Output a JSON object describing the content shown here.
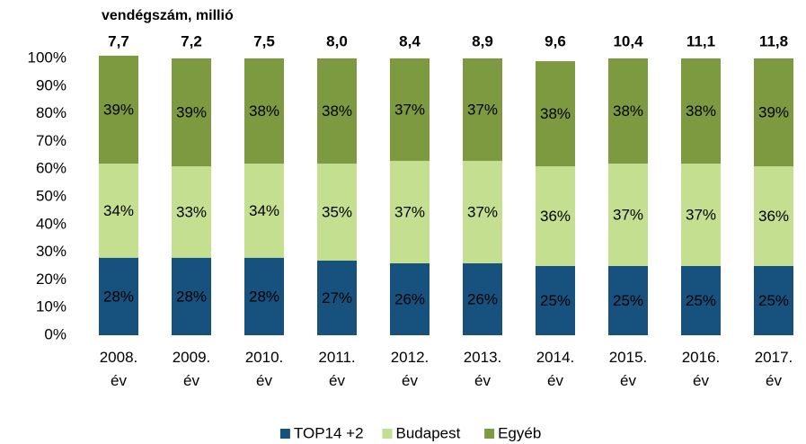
{
  "chart_data": {
    "type": "stacked_bar",
    "subtitle": "vendégszám, millió",
    "categories": [
      "2008. év",
      "2009. év",
      "2010. év",
      "2011. év",
      "2012. év",
      "2013. év",
      "2014. év",
      "2015. év",
      "2016. év",
      "2017. év"
    ],
    "series": [
      {
        "name": "TOP14 +2",
        "color": "#17517e",
        "label_color": "#c3df8f",
        "values": [
          28,
          28,
          28,
          27,
          26,
          26,
          25,
          25,
          25,
          25
        ],
        "value_labels": [
          "28%",
          "28%",
          "28%",
          "27%",
          "26%",
          "26%",
          "25%",
          "25%",
          "25%",
          "25%"
        ]
      },
      {
        "name": "Budapest",
        "color": "#c3df8f",
        "label_color": "#17406e",
        "values": [
          34,
          33,
          34,
          35,
          37,
          37,
          36,
          37,
          37,
          36
        ],
        "value_labels": [
          "34%",
          "33%",
          "34%",
          "35%",
          "37%",
          "37%",
          "36%",
          "37%",
          "37%",
          "36%"
        ]
      },
      {
        "name": "Egyéb",
        "color": "#7e9a40",
        "label_color": "#17406e",
        "values": [
          39,
          39,
          38,
          38,
          37,
          37,
          38,
          38,
          38,
          39
        ],
        "value_labels": [
          "39%",
          "39%",
          "38%",
          "38%",
          "37%",
          "37%",
          "38%",
          "38%",
          "38%",
          "39%"
        ]
      }
    ],
    "totals": {
      "values": [
        7.7,
        7.2,
        7.5,
        8.0,
        8.4,
        8.9,
        9.6,
        10.4,
        11.1,
        11.8
      ],
      "value_labels": [
        "7,7",
        "7,2",
        "7,5",
        "8,0",
        "8,4",
        "8,9",
        "9,6",
        "10,4",
        "11,1",
        "11,8"
      ]
    },
    "ylim": [
      0,
      100
    ],
    "yticks": [
      {
        "value": 0,
        "label": "0%"
      },
      {
        "value": 10,
        "label": "10%"
      },
      {
        "value": 20,
        "label": "20%"
      },
      {
        "value": 30,
        "label": "30%"
      },
      {
        "value": 40,
        "label": "40%"
      },
      {
        "value": 50,
        "label": "50%"
      },
      {
        "value": 60,
        "label": "60%"
      },
      {
        "value": 70,
        "label": "70%"
      },
      {
        "value": 80,
        "label": "80%"
      },
      {
        "value": 90,
        "label": "90%"
      },
      {
        "value": 100,
        "label": "100%"
      }
    ],
    "grid": false,
    "legend": "bottom"
  }
}
